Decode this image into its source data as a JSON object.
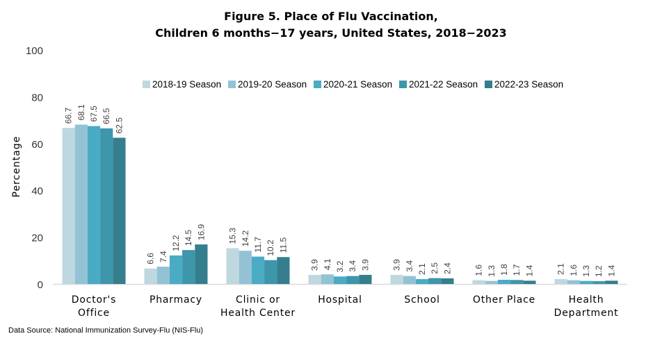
{
  "chart_data": {
    "type": "bar",
    "title": "Figure 5. Place of Flu Vaccination,\nChildren 6 months−17 years, United States, 2018−2023",
    "title_lines": [
      "Figure 5. Place of Flu Vaccination,",
      "Children 6 months−17 years, United States, 2018−2023"
    ],
    "xlabel": "",
    "ylabel": "Percentage",
    "ylim": [
      0,
      100
    ],
    "yticks": [
      "0",
      "20",
      "40",
      "60",
      "80",
      "100"
    ],
    "grid": false,
    "legend_position": "top-right",
    "categories": [
      [
        "Doctor's",
        "Office"
      ],
      [
        "Pharmacy"
      ],
      [
        "Clinic or",
        "Health Center"
      ],
      [
        "Hospital"
      ],
      [
        "School"
      ],
      [
        "Other Place"
      ],
      [
        "Health",
        "Department"
      ]
    ],
    "series": [
      {
        "name": "2018-19 Season",
        "color": "#bfd8e0",
        "values": [
          66.7,
          6.6,
          15.3,
          3.9,
          3.9,
          1.6,
          2.1
        ]
      },
      {
        "name": "2019-20 Season",
        "color": "#93c2d5",
        "values": [
          68.1,
          7.4,
          14.2,
          4.1,
          3.4,
          1.3,
          1.6
        ]
      },
      {
        "name": "2020-21 Season",
        "color": "#4aabc5",
        "values": [
          67.5,
          12.2,
          11.7,
          3.2,
          2.1,
          1.8,
          1.3
        ]
      },
      {
        "name": "2021-22 Season",
        "color": "#3e96aa",
        "values": [
          66.5,
          14.5,
          10.2,
          3.4,
          2.5,
          1.7,
          1.2
        ]
      },
      {
        "name": "2022-23 Season",
        "color": "#347e8e",
        "values": [
          62.5,
          16.9,
          11.5,
          3.9,
          2.4,
          1.4,
          1.4
        ]
      }
    ],
    "source": "Data Source: National Immunization Survey-Flu (NIS-Flu)"
  }
}
